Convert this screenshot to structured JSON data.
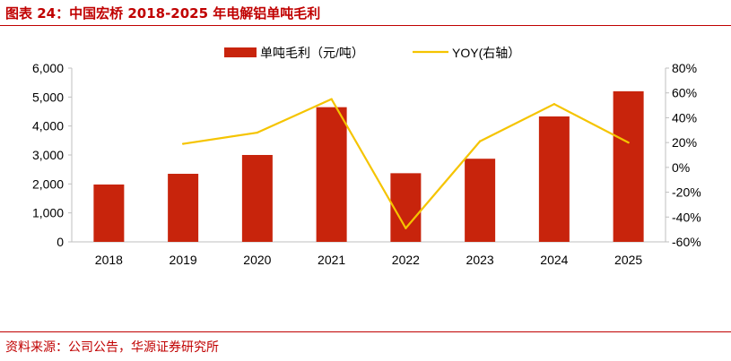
{
  "figure": {
    "title": "图表 24：中国宏桥 2018-2025 年电解铝单吨毛利",
    "source": "资料来源：公司公告，华源证券研究所"
  },
  "colors": {
    "bar": "#c8240c",
    "line": "#f5c400",
    "accent": "#c00000",
    "axis": "#bfbfbf",
    "text": "#000000"
  },
  "chart_data": {
    "type": "bar",
    "categories": [
      "2018",
      "2019",
      "2020",
      "2021",
      "2022",
      "2023",
      "2024",
      "2025"
    ],
    "series": [
      {
        "name": "单吨毛利（元/吨）",
        "type": "bar",
        "axis": "left",
        "values": [
          1980,
          2350,
          3000,
          4650,
          2370,
          2870,
          4330,
          5200
        ]
      },
      {
        "name": "YOY(右轴）",
        "type": "line",
        "axis": "right",
        "values": [
          null,
          0.19,
          0.28,
          0.55,
          -0.49,
          0.21,
          0.51,
          0.2
        ]
      }
    ],
    "left_axis": {
      "ylim": [
        0,
        6000
      ],
      "ticks": [
        0,
        1000,
        2000,
        3000,
        4000,
        5000,
        6000
      ],
      "tick_labels": [
        "0",
        "1,000",
        "2,000",
        "3,000",
        "4,000",
        "5,000",
        "6,000"
      ]
    },
    "right_axis": {
      "ylim": [
        -0.6,
        0.8
      ],
      "ticks": [
        -0.6,
        -0.4,
        -0.2,
        0,
        0.2,
        0.4,
        0.6,
        0.8
      ],
      "tick_labels": [
        "-60%",
        "-40%",
        "-20%",
        "0%",
        "20%",
        "40%",
        "60%",
        "80%"
      ]
    },
    "legend": {
      "position": "top",
      "items": [
        "单吨毛利（元/吨）",
        "YOY(右轴）"
      ]
    },
    "grid": false
  }
}
